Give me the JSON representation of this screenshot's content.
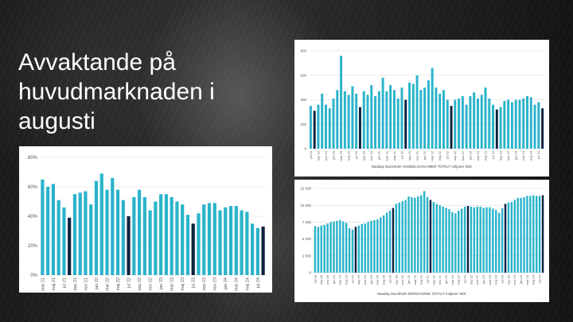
{
  "slide": {
    "title": "Avvaktande på huvudmarknaden i augusti"
  },
  "colors": {
    "bar": "#2ab3cb",
    "highlight": "#0c2140",
    "grid": "#d9d9d9",
    "axis_text": "#555555"
  },
  "chart_data": [
    {
      "id": "share",
      "type": "bar",
      "title": "",
      "xlabel": "",
      "ylabel": "",
      "ylim": [
        0,
        80
      ],
      "yticks": [
        0,
        20,
        40,
        60,
        80
      ],
      "ytick_labels": [
        "0%",
        "20%",
        "40%",
        "60%",
        "80%"
      ],
      "grid": true,
      "x": [
        "mar 21",
        "apr 21",
        "maj 21",
        "jun 21",
        "jul 21",
        "aug 21",
        "sep 21",
        "okt 21",
        "nov 21",
        "dec 21",
        "jan 22",
        "feb 22",
        "mar 22",
        "apr 22",
        "maj 22",
        "jun 22",
        "jul 22",
        "aug 22",
        "sep 22",
        "okt 22",
        "nov 22",
        "dec 22",
        "jan 23",
        "feb 23",
        "mar 23",
        "apr 23",
        "maj 23",
        "jun 23",
        "jul 23",
        "aug 23",
        "sep 23",
        "okt 23",
        "nov 23",
        "dec 23",
        "jan 24",
        "feb 24",
        "mar 24",
        "apr 24",
        "maj 24",
        "jun 24",
        "jul 24",
        "aug 24"
      ],
      "x_labels": [
        "mar 21",
        "",
        "maj 21",
        "",
        "jul 21",
        "",
        "sep 21",
        "",
        "nov 21",
        "",
        "jan 22",
        "",
        "mar 22",
        "",
        "maj 22",
        "",
        "jul 22",
        "",
        "sep 22",
        "",
        "nov 22",
        "",
        "jan 23",
        "",
        "mar 23",
        "",
        "maj 23",
        "",
        "jul 23",
        "",
        "sep 23",
        "",
        "nov 23",
        "",
        "jan 24",
        "",
        "mar 24",
        "",
        "maj 24",
        "",
        "jul 24",
        ""
      ],
      "values": [
        65,
        60,
        62,
        51,
        46,
        39,
        55,
        56,
        57,
        48,
        64,
        69,
        58,
        66,
        58,
        51,
        40,
        53,
        58,
        53,
        44,
        50,
        55,
        55,
        53,
        50,
        48,
        41,
        35,
        42,
        48,
        49,
        49,
        44,
        46,
        47,
        47,
        44,
        43,
        35,
        32,
        33
      ],
      "highlight_index": [
        5,
        16,
        28,
        41
      ]
    },
    {
      "id": "volume",
      "type": "bar",
      "title": "",
      "xlabel": "Nasdaq Stockholm HANDELSVOLYMER TOTALT miljoner SEK",
      "ylabel": "",
      "ylim": [
        0,
        800
      ],
      "yticks": [
        0,
        200,
        400,
        600,
        800
      ],
      "ytick_labels": [
        "0",
        "200",
        "400",
        "600",
        "800"
      ],
      "grid": true,
      "x": [
        "jul 19",
        "aug 19",
        "sep 19",
        "okt 19",
        "nov 19",
        "dec 19",
        "jan 20",
        "feb 20",
        "mar 20",
        "apr 20",
        "maj 20",
        "jun 20",
        "jul 20",
        "aug 20",
        "sep 20",
        "okt 20",
        "nov 20",
        "dec 20",
        "jan 21",
        "feb 21",
        "mar 21",
        "apr 21",
        "maj 21",
        "jun 21",
        "jul 21",
        "aug 21",
        "sep 21",
        "okt 21",
        "nov 21",
        "dec 21",
        "jan 22",
        "feb 22",
        "mar 22",
        "apr 22",
        "maj 22",
        "jun 22",
        "jul 22",
        "aug 22",
        "sep 22",
        "okt 22",
        "nov 22",
        "dec 22",
        "jan 23",
        "feb 23",
        "mar 23",
        "apr 23",
        "maj 23",
        "jun 23",
        "jul 23",
        "aug 23",
        "sep 23",
        "okt 23",
        "nov 23",
        "dec 23",
        "jan 24",
        "feb 24",
        "mar 24",
        "apr 24",
        "maj 24",
        "jun 24",
        "jul 24",
        "aug 24"
      ],
      "x_labels": [
        "jul 19",
        "",
        "sep 19",
        "",
        "nov 19",
        "",
        "jan 20",
        "",
        "mar 20",
        "",
        "maj 20",
        "",
        "jul 20",
        "",
        "sep 20",
        "",
        "nov 20",
        "",
        "jan 21",
        "",
        "mar 21",
        "",
        "maj 21",
        "",
        "jul 21",
        "",
        "sep 21",
        "",
        "nov 21",
        "",
        "jan 22",
        "",
        "mar 22",
        "",
        "maj 22",
        "",
        "jul 22",
        "",
        "sep 22",
        "",
        "nov 22",
        "",
        "jan 23",
        "",
        "mar 23",
        "",
        "maj 23",
        "",
        "jul 23",
        "",
        "sep 23",
        "",
        "nov 23",
        "",
        "jan 24",
        "",
        "mar 24",
        "",
        "maj 24",
        "",
        "jul 24",
        ""
      ],
      "values": [
        350,
        310,
        360,
        450,
        360,
        330,
        410,
        480,
        760,
        470,
        440,
        510,
        450,
        340,
        470,
        440,
        520,
        430,
        470,
        580,
        470,
        520,
        480,
        410,
        500,
        400,
        540,
        530,
        600,
        480,
        500,
        560,
        660,
        500,
        450,
        480,
        400,
        350,
        400,
        410,
        430,
        360,
        430,
        460,
        410,
        440,
        500,
        410,
        360,
        320,
        340,
        390,
        400,
        380,
        400,
        400,
        410,
        430,
        420,
        360,
        380,
        330
      ],
      "highlight_index": [
        1,
        13,
        25,
        37,
        49,
        61
      ]
    },
    {
      "id": "market-cap",
      "type": "bar",
      "title": "",
      "xlabel": "Nasdaq Stockholm BÖRSVÄRDE TOTALT miljoner SEK",
      "ylabel": "",
      "ylim": [
        0,
        12500
      ],
      "yticks": [
        0,
        2500,
        5000,
        7500,
        10000,
        12500
      ],
      "ytick_labels": [
        "0",
        "2 500",
        "5 000",
        "7 500",
        "10 000",
        "12 500"
      ],
      "grid": true,
      "x": [
        "jul 18",
        "aug 18",
        "sep 18",
        "okt 18",
        "nov 18",
        "dec 18",
        "jan 19",
        "feb 19",
        "mar 19",
        "apr 19",
        "maj 19",
        "jun 19",
        "jul 19",
        "aug 19",
        "sep 19",
        "okt 19",
        "nov 19",
        "dec 19",
        "jan 20",
        "feb 20",
        "mar 20",
        "apr 20",
        "maj 20",
        "jun 20",
        "jul 20",
        "aug 20",
        "sep 20",
        "okt 20",
        "nov 20",
        "dec 20",
        "jan 21",
        "feb 21",
        "mar 21",
        "apr 21",
        "maj 21",
        "jun 21",
        "jul 21",
        "aug 21",
        "sep 21",
        "okt 21",
        "nov 21",
        "dec 21",
        "jan 22",
        "feb 22",
        "mar 22",
        "apr 22",
        "maj 22",
        "jun 22",
        "jul 22",
        "aug 22",
        "sep 22",
        "okt 22",
        "nov 22",
        "dec 22",
        "jan 23",
        "feb 23",
        "mar 23",
        "apr 23",
        "maj 23",
        "jun 23",
        "jul 23",
        "aug 23",
        "sep 23",
        "okt 23",
        "nov 23",
        "dec 23",
        "jan 24",
        "feb 24",
        "mar 24",
        "apr 24",
        "maj 24",
        "jun 24",
        "jul 24",
        "aug 24"
      ],
      "x_labels": [
        "jul 18",
        "",
        "sep 18",
        "",
        "nov 18",
        "",
        "jan 19",
        "",
        "mar 19",
        "",
        "maj 19",
        "",
        "jul 19",
        "",
        "sep 19",
        "",
        "nov 19",
        "",
        "jan 20",
        "",
        "mar 20",
        "",
        "maj 20",
        "",
        "jul 20",
        "",
        "sep 20",
        "",
        "nov 20",
        "",
        "jan 21",
        "",
        "mar 21",
        "",
        "maj 21",
        "",
        "jul 21",
        "",
        "sep 21",
        "",
        "nov 21",
        "",
        "jan 22",
        "",
        "mar 22",
        "",
        "maj 22",
        "",
        "jul 22",
        "",
        "sep 22",
        "",
        "nov 22",
        "",
        "jan 23",
        "",
        "mar 23",
        "",
        "maj 23",
        "",
        "jul 23",
        "",
        "sep 23",
        "",
        "nov 23",
        "",
        "jan 24",
        "",
        "mar 24",
        "",
        "maj 24",
        "",
        "jul 24",
        ""
      ],
      "values": [
        6900,
        6800,
        7000,
        7100,
        7300,
        7500,
        7600,
        7700,
        7800,
        7600,
        7400,
        6600,
        6400,
        6800,
        7000,
        7200,
        7300,
        7500,
        7700,
        7800,
        7900,
        8200,
        8500,
        8900,
        9200,
        9600,
        10200,
        10400,
        10600,
        10800,
        11300,
        11200,
        11100,
        11300,
        11500,
        12100,
        11200,
        10800,
        10500,
        10200,
        10000,
        9800,
        9600,
        9400,
        9000,
        8800,
        9200,
        9500,
        9800,
        9900,
        9800,
        9700,
        9800,
        9800,
        9600,
        9700,
        9700,
        9500,
        9300,
        8900,
        9600,
        10200,
        10400,
        10500,
        10800,
        11100,
        11100,
        11200,
        11400,
        11400,
        11500,
        11400,
        11400,
        11500
      ],
      "highlight_index": [
        13,
        25,
        37,
        49,
        61,
        73
      ]
    }
  ]
}
